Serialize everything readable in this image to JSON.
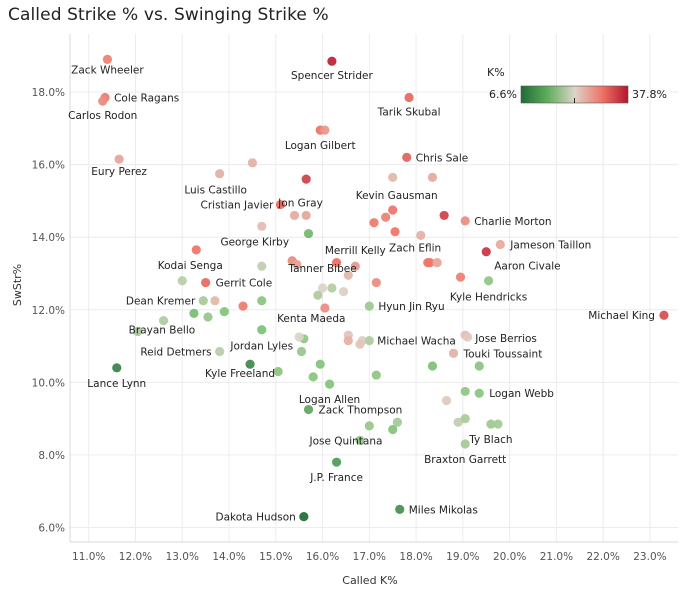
{
  "chart_data": {
    "type": "scatter",
    "title": "Called Strike % vs. Swinging Strike %",
    "xlabel": "Called K%",
    "ylabel": "SwStr%",
    "xlim": [
      10.6,
      23.6
    ],
    "ylim": [
      5.6,
      19.6
    ],
    "xticks": [
      "11.0%",
      "12.0%",
      "13.0%",
      "14.0%",
      "15.0%",
      "16.0%",
      "17.0%",
      "18.0%",
      "19.0%",
      "20.0%",
      "21.0%",
      "22.0%",
      "23.0%"
    ],
    "xtick_values": [
      11,
      12,
      13,
      14,
      15,
      16,
      17,
      18,
      19,
      20,
      21,
      22,
      23
    ],
    "yticks": [
      "6.0%",
      "8.0%",
      "10.0%",
      "12.0%",
      "14.0%",
      "16.0%",
      "18.0%"
    ],
    "ytick_values": [
      6,
      8,
      10,
      12,
      14,
      16,
      18
    ],
    "grid": true,
    "legend": {
      "title": "K%",
      "min_label": "6.6%",
      "max_label": "37.8%",
      "min": 6.6,
      "max": 37.8,
      "mid": 22.2,
      "placement": "top-right"
    },
    "colors": {
      "low": "#1f6b36",
      "low_mid": "#7fc477",
      "mid": "#ddd4c8",
      "high_mid": "#f0766a",
      "high": "#b5162f"
    },
    "points": [
      {
        "name": "Zack Wheeler",
        "x": 11.4,
        "y": 18.9,
        "k": 29.0
      },
      {
        "name": "Cole Ragans",
        "x": 11.35,
        "y": 17.85,
        "k": 29.5
      },
      {
        "name": "Carlos Rodon",
        "x": 11.3,
        "y": 17.75,
        "k": 28.0
      },
      {
        "name": "Eury Perez",
        "x": 11.65,
        "y": 16.15,
        "k": 26.0
      },
      {
        "name": "Spencer Strider",
        "x": 16.2,
        "y": 18.85,
        "k": 36.5
      },
      {
        "name": "Tarik Skubal",
        "x": 17.85,
        "y": 17.85,
        "k": 31.0
      },
      {
        "name": "Logan Gilbert",
        "x": 15.95,
        "y": 16.95,
        "k": 30.0
      },
      {
        "name": "Chris Sale",
        "x": 17.8,
        "y": 16.2,
        "k": 31.5
      },
      {
        "name": "Luis Castillo",
        "x": 13.8,
        "y": 15.75,
        "k": 25.0
      },
      {
        "name": "Cristian Javier",
        "x": 15.1,
        "y": 14.9,
        "k": 30.5
      },
      {
        "name": "Jon Gray",
        "x": 15.4,
        "y": 14.6,
        "k": 25.5
      },
      {
        "name": "Kevin Gausman",
        "x": 17.5,
        "y": 14.75,
        "k": 30.0
      },
      {
        "name": "Charlie Morton",
        "x": 19.05,
        "y": 14.45,
        "k": 28.0
      },
      {
        "name": "George Kirby",
        "x": 14.7,
        "y": 14.3,
        "k": 24.0
      },
      {
        "name": "Jameson Taillon",
        "x": 19.8,
        "y": 13.8,
        "k": 25.5
      },
      {
        "name": "Kodai Senga",
        "x": 13.3,
        "y": 13.65,
        "k": 30.0
      },
      {
        "name": "Merrill Kelly",
        "x": 16.7,
        "y": 13.2,
        "k": 27.0
      },
      {
        "name": "Zach Eflin",
        "x": 18.3,
        "y": 13.3,
        "k": 29.5
      },
      {
        "name": "Aaron Civale",
        "x": 19.5,
        "y": 13.6,
        "k": 35.0
      },
      {
        "name": "Tanner Bibee",
        "x": 16.0,
        "y": 12.6,
        "k": 22.0
      },
      {
        "name": "Gerrit Cole",
        "x": 13.5,
        "y": 12.75,
        "k": 31.0
      },
      {
        "name": "Dean Kremer",
        "x": 13.45,
        "y": 12.25,
        "k": 18.0
      },
      {
        "name": "Kyle Hendricks",
        "x": 19.55,
        "y": 12.8,
        "k": 16.0
      },
      {
        "name": "Hyun Jin Ryu",
        "x": 17.0,
        "y": 12.1,
        "k": 17.0
      },
      {
        "name": "Michael King",
        "x": 23.3,
        "y": 11.85,
        "k": 33.0
      },
      {
        "name": "Brayan Bello",
        "x": 13.25,
        "y": 11.9,
        "k": 14.0
      },
      {
        "name": "Kenta Maeda",
        "x": 16.55,
        "y": 11.3,
        "k": 23.5
      },
      {
        "name": "Jose Berrios",
        "x": 19.05,
        "y": 11.3,
        "k": 24.0
      },
      {
        "name": "Reid Detmers",
        "x": 13.8,
        "y": 10.85,
        "k": 19.5
      },
      {
        "name": "Jordan Lyles",
        "x": 14.7,
        "y": 11.45,
        "k": 14.5
      },
      {
        "name": "Michael Wacha",
        "x": 16.85,
        "y": 11.15,
        "k": 22.5
      },
      {
        "name": "Touki Toussaint",
        "x": 18.8,
        "y": 10.8,
        "k": 25.0
      },
      {
        "name": "Lance Lynn",
        "x": 11.6,
        "y": 10.4,
        "k": 9.0
      },
      {
        "name": "Kyle Freeland",
        "x": 14.45,
        "y": 10.5,
        "k": 9.5
      },
      {
        "name": "Logan Allen",
        "x": 16.15,
        "y": 9.95,
        "k": 15.0
      },
      {
        "name": "Logan Webb",
        "x": 19.35,
        "y": 9.7,
        "k": 15.5
      },
      {
        "name": "Zack Thompson",
        "x": 15.7,
        "y": 9.25,
        "k": 12.0
      },
      {
        "name": "Jose Quintana",
        "x": 16.8,
        "y": 8.4,
        "k": 16.0
      },
      {
        "name": "Ty Blach",
        "x": 19.6,
        "y": 8.85,
        "k": 17.0
      },
      {
        "name": "Braxton Garrett",
        "x": 19.05,
        "y": 8.3,
        "k": 17.5
      },
      {
        "name": "J.P. France",
        "x": 16.3,
        "y": 7.8,
        "k": 11.0
      },
      {
        "name": "Miles Mikolas",
        "x": 17.65,
        "y": 6.5,
        "k": 10.0
      },
      {
        "name": "Dakota Hudson",
        "x": 15.6,
        "y": 6.3,
        "k": 7.0
      },
      {
        "name": "",
        "x": 15.65,
        "y": 15.6,
        "k": 34.0
      },
      {
        "name": "",
        "x": 16.05,
        "y": 16.95,
        "k": 27.0
      },
      {
        "name": "",
        "x": 14.5,
        "y": 16.05,
        "k": 25.0
      },
      {
        "name": "",
        "x": 17.5,
        "y": 15.65,
        "k": 24.5
      },
      {
        "name": "",
        "x": 18.35,
        "y": 15.65,
        "k": 25.5
      },
      {
        "name": "",
        "x": 15.65,
        "y": 14.6,
        "k": 26.0
      },
      {
        "name": "",
        "x": 17.1,
        "y": 14.4,
        "k": 29.5
      },
      {
        "name": "",
        "x": 17.35,
        "y": 14.55,
        "k": 29.0
      },
      {
        "name": "",
        "x": 17.55,
        "y": 14.15,
        "k": 30.0
      },
      {
        "name": "",
        "x": 18.1,
        "y": 14.05,
        "k": 25.0
      },
      {
        "name": "",
        "x": 18.6,
        "y": 14.6,
        "k": 34.0
      },
      {
        "name": "",
        "x": 15.7,
        "y": 14.1,
        "k": 13.5
      },
      {
        "name": "",
        "x": 15.35,
        "y": 13.35,
        "k": 28.0
      },
      {
        "name": "",
        "x": 15.45,
        "y": 13.25,
        "k": 26.5
      },
      {
        "name": "",
        "x": 16.3,
        "y": 13.3,
        "k": 30.5
      },
      {
        "name": "",
        "x": 16.55,
        "y": 12.95,
        "k": 24.5
      },
      {
        "name": "",
        "x": 17.15,
        "y": 12.75,
        "k": 28.0
      },
      {
        "name": "",
        "x": 18.25,
        "y": 13.3,
        "k": 30.0
      },
      {
        "name": "",
        "x": 18.45,
        "y": 13.3,
        "k": 26.0
      },
      {
        "name": "",
        "x": 18.95,
        "y": 12.9,
        "k": 29.0
      },
      {
        "name": "",
        "x": 14.7,
        "y": 13.2,
        "k": 20.0
      },
      {
        "name": "",
        "x": 14.3,
        "y": 12.1,
        "k": 29.5
      },
      {
        "name": "",
        "x": 13.0,
        "y": 12.8,
        "k": 19.5
      },
      {
        "name": "",
        "x": 13.7,
        "y": 12.25,
        "k": 24.5
      },
      {
        "name": "",
        "x": 14.7,
        "y": 12.25,
        "k": 15.5
      },
      {
        "name": "",
        "x": 13.55,
        "y": 11.8,
        "k": 16.5
      },
      {
        "name": "",
        "x": 13.9,
        "y": 11.95,
        "k": 15.0
      },
      {
        "name": "",
        "x": 12.6,
        "y": 11.7,
        "k": 18.5
      },
      {
        "name": "",
        "x": 12.05,
        "y": 11.4,
        "k": 18.0
      },
      {
        "name": "",
        "x": 15.9,
        "y": 12.4,
        "k": 18.5
      },
      {
        "name": "",
        "x": 16.2,
        "y": 12.6,
        "k": 19.0
      },
      {
        "name": "",
        "x": 16.05,
        "y": 12.05,
        "k": 28.0
      },
      {
        "name": "",
        "x": 16.45,
        "y": 12.5,
        "k": 22.5
      },
      {
        "name": "",
        "x": 15.6,
        "y": 11.2,
        "k": 16.0
      },
      {
        "name": "",
        "x": 15.5,
        "y": 11.25,
        "k": 22.0
      },
      {
        "name": "",
        "x": 15.55,
        "y": 10.85,
        "k": 16.5
      },
      {
        "name": "",
        "x": 17.0,
        "y": 11.15,
        "k": 18.5
      },
      {
        "name": "",
        "x": 16.55,
        "y": 11.15,
        "k": 25.0
      },
      {
        "name": "",
        "x": 16.8,
        "y": 11.05,
        "k": 23.5
      },
      {
        "name": "",
        "x": 15.05,
        "y": 10.3,
        "k": 15.5
      },
      {
        "name": "",
        "x": 15.95,
        "y": 10.5,
        "k": 15.0
      },
      {
        "name": "",
        "x": 15.8,
        "y": 10.15,
        "k": 15.5
      },
      {
        "name": "",
        "x": 17.15,
        "y": 10.2,
        "k": 16.0
      },
      {
        "name": "",
        "x": 18.35,
        "y": 10.45,
        "k": 14.5
      },
      {
        "name": "",
        "x": 19.35,
        "y": 10.45,
        "k": 15.5
      },
      {
        "name": "",
        "x": 18.65,
        "y": 9.5,
        "k": 23.0
      },
      {
        "name": "",
        "x": 19.05,
        "y": 9.75,
        "k": 16.0
      },
      {
        "name": "",
        "x": 17.0,
        "y": 8.8,
        "k": 16.5
      },
      {
        "name": "",
        "x": 17.5,
        "y": 8.7,
        "k": 15.0
      },
      {
        "name": "",
        "x": 17.6,
        "y": 8.9,
        "k": 17.5
      },
      {
        "name": "",
        "x": 18.9,
        "y": 8.9,
        "k": 20.0
      },
      {
        "name": "",
        "x": 19.05,
        "y": 9.0,
        "k": 18.0
      },
      {
        "name": "",
        "x": 19.75,
        "y": 8.85,
        "k": 17.5
      },
      {
        "name": "",
        "x": 19.1,
        "y": 11.25,
        "k": 23.0
      }
    ]
  }
}
